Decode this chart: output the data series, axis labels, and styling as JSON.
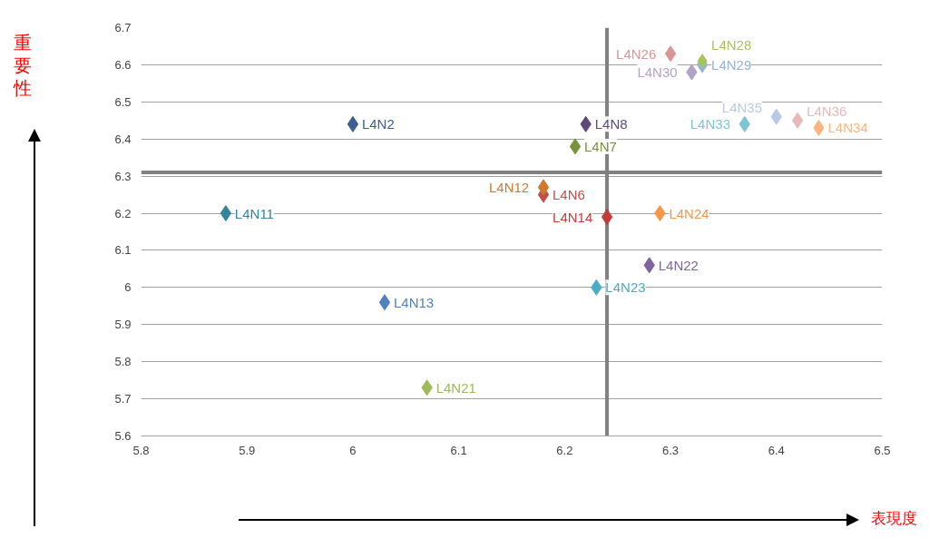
{
  "chart_data": {
    "type": "scatter",
    "xlabel": "表現度",
    "ylabel": "重要性",
    "marker": "diamond",
    "legend": false,
    "grid": "y",
    "xlim": [
      5.8,
      6.5
    ],
    "ylim": [
      5.6,
      6.7
    ],
    "xticks": [
      5.8,
      5.9,
      6,
      6.1,
      6.2,
      6.3,
      6.4,
      6.5
    ],
    "yticks": [
      5.6,
      5.7,
      5.8,
      5.9,
      6,
      6.1,
      6.2,
      6.3,
      6.4,
      6.5,
      6.6,
      6.7
    ],
    "ref_lines": [
      {
        "axis": "x",
        "value": 6.24,
        "color": "#808080"
      },
      {
        "axis": "y",
        "value": 6.31,
        "color": "#808080"
      }
    ],
    "series": [
      {
        "name": "L4N2",
        "color": "#3c5f8f",
        "x": [
          6.0
        ],
        "values": [
          6.44
        ]
      },
      {
        "name": "L4N11",
        "color": "#31859c",
        "x": [
          5.88
        ],
        "values": [
          6.2
        ]
      },
      {
        "name": "L4N13",
        "color": "#4f81bd",
        "x": [
          6.03
        ],
        "values": [
          5.96
        ]
      },
      {
        "name": "L4N21",
        "color": "#9bbb59",
        "x": [
          6.07
        ],
        "values": [
          5.73
        ]
      },
      {
        "name": "L4N7",
        "color": "#77933c",
        "x": [
          6.21
        ],
        "values": [
          6.38
        ]
      },
      {
        "name": "L4N8",
        "color": "#5f497a",
        "x": [
          6.22
        ],
        "values": [
          6.44
        ]
      },
      {
        "name": "L4N6",
        "color": "#c0504d",
        "x": [
          6.18
        ],
        "values": [
          6.25
        ]
      },
      {
        "name": "L4N12",
        "color": "#d0782e",
        "x": [
          6.18
        ],
        "values": [
          6.27
        ]
      },
      {
        "name": "L4N14",
        "color": "#c43c3a",
        "x": [
          6.24
        ],
        "values": [
          6.19
        ]
      },
      {
        "name": "L4N24",
        "color": "#f79646",
        "x": [
          6.29
        ],
        "values": [
          6.2
        ]
      },
      {
        "name": "L4N22",
        "color": "#8064a2",
        "x": [
          6.28
        ],
        "values": [
          6.06
        ]
      },
      {
        "name": "L4N23",
        "color": "#4bacc6",
        "x": [
          6.23
        ],
        "values": [
          6.0
        ]
      },
      {
        "name": "L4N26",
        "color": "#d99694",
        "x": [
          6.3
        ],
        "values": [
          6.63
        ]
      },
      {
        "name": "L4N29",
        "color": "#95b3d7",
        "x": [
          6.33
        ],
        "values": [
          6.6
        ]
      },
      {
        "name": "L4N28",
        "color": "#a6c45e",
        "x": [
          6.33
        ],
        "values": [
          6.61
        ]
      },
      {
        "name": "L4N30",
        "color": "#b3a2c7",
        "x": [
          6.32
        ],
        "values": [
          6.58
        ]
      },
      {
        "name": "L4N33",
        "color": "#7fc4d6",
        "x": [
          6.37
        ],
        "values": [
          6.44
        ]
      },
      {
        "name": "L4N35",
        "color": "#b9c9e3",
        "x": [
          6.4
        ],
        "values": [
          6.46
        ]
      },
      {
        "name": "L4N36",
        "color": "#e6b9b8",
        "x": [
          6.42
        ],
        "values": [
          6.45
        ]
      },
      {
        "name": "L4N34",
        "color": "#fab680",
        "x": [
          6.44
        ],
        "values": [
          6.43
        ]
      }
    ]
  }
}
